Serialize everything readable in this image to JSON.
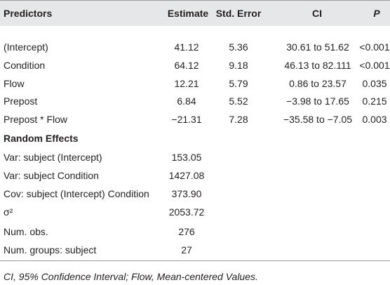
{
  "table": {
    "header": [
      "Predictors",
      "Estimate",
      "Std. Error",
      "CI",
      "P"
    ],
    "fixed_rows": [
      [
        "(Intercept)",
        "41.12",
        "5.36",
        "30.61 to 51.62",
        "<0.001"
      ],
      [
        "Condition",
        "64.12",
        "9.18",
        "46.13 to 82.111",
        "<0.001"
      ],
      [
        "Flow",
        "12.21",
        "5.79",
        "0.86 to 23.57",
        "0.035"
      ],
      [
        "Prepost",
        "6.84",
        "5.52",
        "−3.98 to 17.65",
        "0.215"
      ],
      [
        "Prepost * Flow",
        "−21.31",
        "7.28",
        "−35.58 to −7.05",
        "0.003"
      ]
    ],
    "random_title": "Random Effects",
    "random_rows": [
      [
        "Var: subject (Intercept)",
        "153.05"
      ],
      [
        "Var: subject Condition",
        "1427.08"
      ],
      [
        "Cov: subject (Intercept) Condition",
        "373.90"
      ],
      [
        "σ²",
        "2053.72"
      ],
      [
        "Num. obs.",
        "276"
      ],
      [
        "Num. groups: subject",
        "27"
      ]
    ],
    "footnote": "CI, 95% Confidence Interval; Flow, Mean-centered Values."
  }
}
